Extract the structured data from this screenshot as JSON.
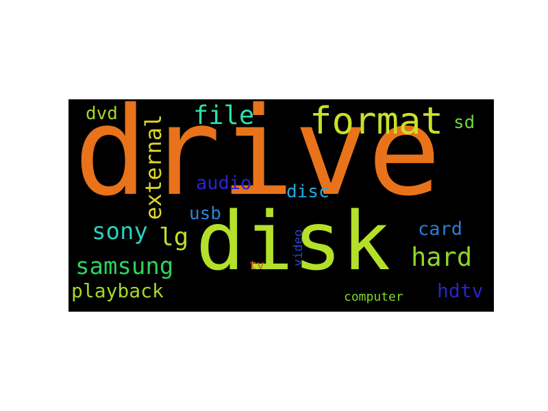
{
  "word_cloud": {
    "background": "#000000",
    "words": [
      {
        "text": "drive",
        "color": "#e8731a"
      },
      {
        "text": "disk",
        "color": "#b5e02a"
      },
      {
        "text": "format",
        "color": "#c8e02a"
      },
      {
        "text": "file",
        "color": "#2de0a8"
      },
      {
        "text": "external",
        "color": "#dcd62a"
      },
      {
        "text": "dvd",
        "color": "#a6d62a"
      },
      {
        "text": "sd",
        "color": "#6ed836"
      },
      {
        "text": "audio",
        "color": "#2a24d4"
      },
      {
        "text": "disc",
        "color": "#25a8e0"
      },
      {
        "text": "usb",
        "color": "#2a84d8"
      },
      {
        "text": "sony",
        "color": "#2ad0c0"
      },
      {
        "text": "lg",
        "color": "#c4dc2a"
      },
      {
        "text": "card",
        "color": "#2a7cd6"
      },
      {
        "text": "hard",
        "color": "#8ed82a"
      },
      {
        "text": "samsung",
        "color": "#2ad65a"
      },
      {
        "text": "video",
        "color": "#2a44d0"
      },
      {
        "text": "tv",
        "color": "#d8602a"
      },
      {
        "text": "playback",
        "color": "#a6d62a"
      },
      {
        "text": "computer",
        "color": "#7ed82a"
      },
      {
        "text": "hdtv",
        "color": "#2a24c8"
      }
    ]
  }
}
